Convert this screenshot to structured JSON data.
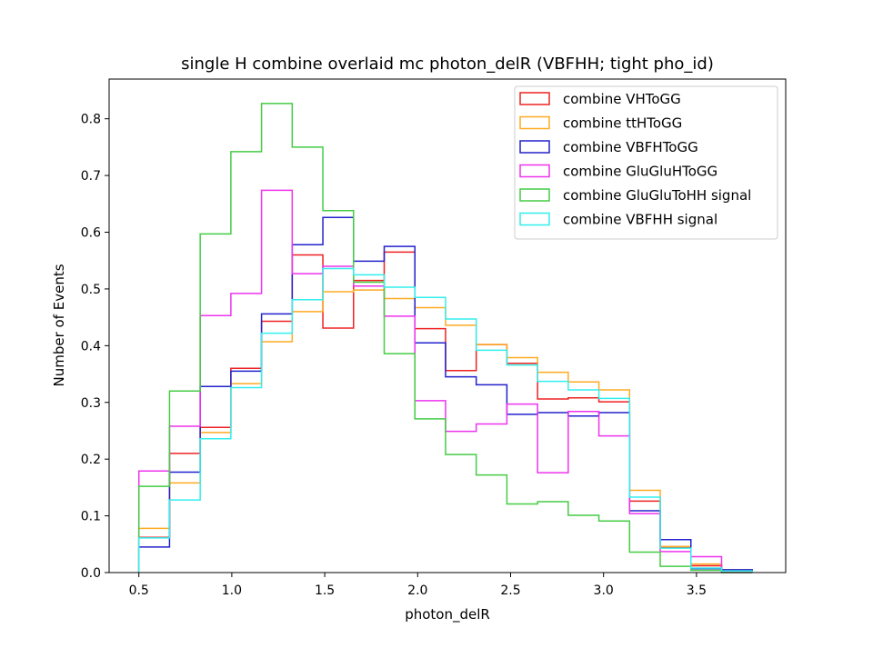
{
  "chart_data": {
    "type": "line",
    "style": "step-histogram",
    "title": "single H combine overlaid mc photon_delR (VBFHH; tight pho_id)",
    "xlabel": "photon_delR",
    "ylabel": "Number of Events",
    "xlim": [
      0.34,
      3.98
    ],
    "ylim": [
      0.0,
      0.87
    ],
    "xticks": [
      0.5,
      1.0,
      1.5,
      2.0,
      2.5,
      3.0,
      3.5
    ],
    "xtick_labels": [
      "0.5",
      "1.0",
      "1.5",
      "2.0",
      "2.5",
      "3.0",
      "3.5"
    ],
    "yticks": [
      0.0,
      0.1,
      0.2,
      0.3,
      0.4,
      0.5,
      0.6,
      0.7,
      0.8
    ],
    "ytick_labels": [
      "0.0",
      "0.1",
      "0.2",
      "0.3",
      "0.4",
      "0.5",
      "0.6",
      "0.7",
      "0.8"
    ],
    "grid": false,
    "legend_position": "top-right",
    "bin_edges": [
      0.5,
      0.665,
      0.83,
      0.995,
      1.16,
      1.325,
      1.49,
      1.655,
      1.82,
      1.985,
      2.15,
      2.315,
      2.48,
      2.645,
      2.81,
      2.975,
      3.14,
      3.305,
      3.47,
      3.635,
      3.8
    ],
    "series": [
      {
        "name": "combine VHToGG",
        "color": "#ee2222",
        "values": [
          0.062,
          0.21,
          0.256,
          0.36,
          0.443,
          0.56,
          0.431,
          0.515,
          0.565,
          0.43,
          0.356,
          0.402,
          0.369,
          0.306,
          0.308,
          0.301,
          0.126,
          0.045,
          0.012,
          0.005
        ]
      },
      {
        "name": "combine ttHToGG",
        "color": "#ffaa22",
        "values": [
          0.078,
          0.158,
          0.247,
          0.333,
          0.407,
          0.46,
          0.495,
          0.498,
          0.483,
          0.467,
          0.436,
          0.402,
          0.379,
          0.353,
          0.336,
          0.322,
          0.145,
          0.046,
          0.015,
          0.005
        ]
      },
      {
        "name": "combine VBFHToGG",
        "color": "#2222cc",
        "values": [
          0.045,
          0.177,
          0.328,
          0.355,
          0.456,
          0.578,
          0.626,
          0.549,
          0.575,
          0.405,
          0.345,
          0.331,
          0.279,
          0.282,
          0.276,
          0.282,
          0.109,
          0.058,
          0.007,
          0.005
        ]
      },
      {
        "name": "combine GluGluHToGG",
        "color": "#ee33ee",
        "values": [
          0.179,
          0.258,
          0.453,
          0.492,
          0.674,
          0.527,
          0.54,
          0.505,
          0.452,
          0.303,
          0.249,
          0.262,
          0.297,
          0.176,
          0.284,
          0.241,
          0.104,
          0.037,
          0.028,
          0.0
        ]
      },
      {
        "name": "combine GluGluToHH signal",
        "color": "#44cc44",
        "values": [
          0.152,
          0.32,
          0.597,
          0.742,
          0.827,
          0.75,
          0.638,
          0.512,
          0.386,
          0.271,
          0.208,
          0.172,
          0.121,
          0.125,
          0.101,
          0.091,
          0.036,
          0.011,
          0.004,
          0.0
        ]
      },
      {
        "name": "combine VBFHH signal",
        "color": "#33eeee",
        "values": [
          0.061,
          0.128,
          0.236,
          0.326,
          0.422,
          0.481,
          0.536,
          0.525,
          0.503,
          0.485,
          0.447,
          0.392,
          0.366,
          0.337,
          0.322,
          0.307,
          0.133,
          0.043,
          0.008,
          0.003
        ]
      }
    ]
  }
}
